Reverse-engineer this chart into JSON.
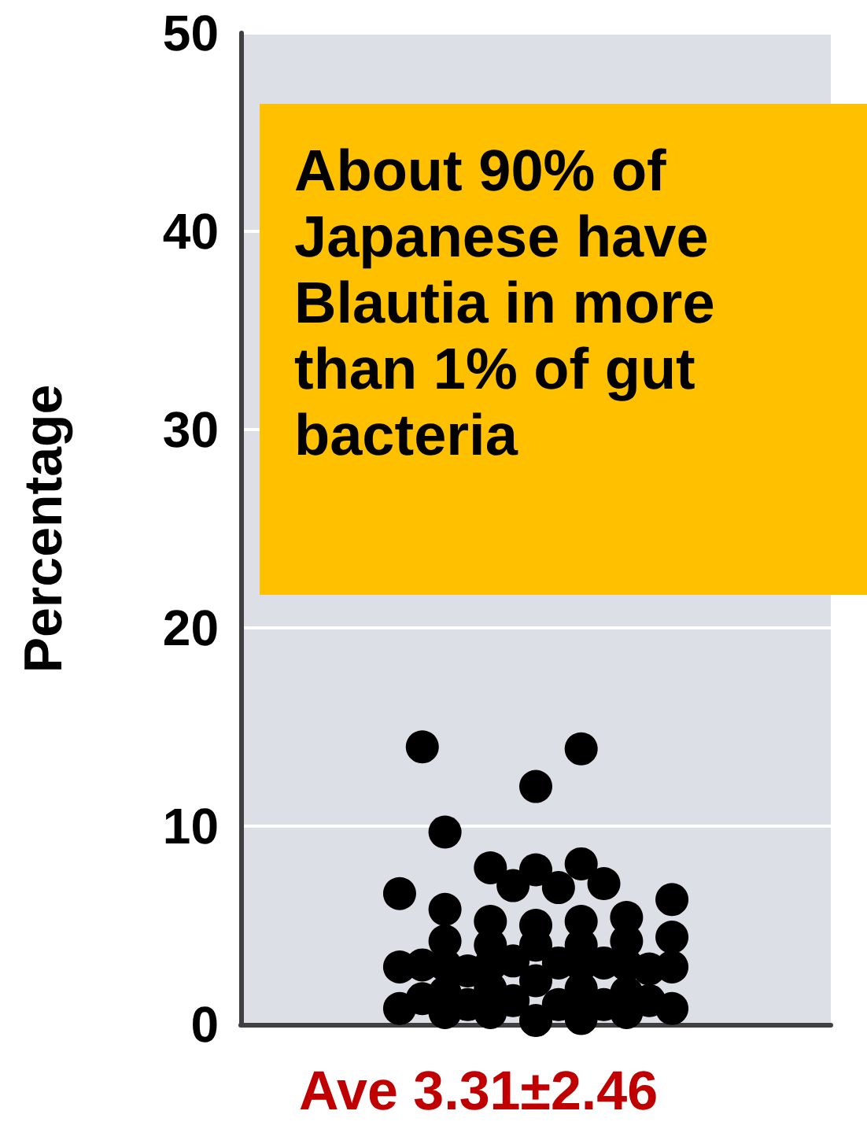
{
  "chart_data": {
    "type": "scatter",
    "ylabel": "Percentage",
    "annotations": [
      "About 90% of Japanese have Blautia in more than 1% of gut bacteria",
      "Ave 3.31±2.46"
    ],
    "categories": [
      null,
      null,
      null,
      null,
      null,
      null,
      null,
      null,
      null,
      null,
      null,
      null,
      null,
      null,
      null,
      null,
      null,
      null,
      null,
      null,
      null,
      null,
      null,
      null,
      null,
      null,
      null
    ],
    "ylim": [
      0,
      50
    ],
    "yticks": [
      0,
      10,
      20,
      30,
      40,
      50
    ],
    "grid": "y",
    "tick_labels": "y",
    "marker": "circle",
    "series": [
      {
        "color": "#000000",
        "values": [
          null,
          null,
          null,
          null,
          null,
          null,
          null,
          6.6,
          14.0,
          9.7,
          2.7,
          7.9,
          7.0,
          12.0,
          6.9,
          13.9,
          7.1,
          5.4,
          2.8,
          6.3,
          null,
          null,
          null,
          null,
          null,
          null,
          null
        ]
      },
      {
        "color": "#000000",
        "values": [
          null,
          null,
          null,
          null,
          null,
          null,
          null,
          2.9,
          3.0,
          5.8,
          1.0,
          5.2,
          3.2,
          7.8,
          3.1,
          8.1,
          3.1,
          4.2,
          1.2,
          4.4,
          null,
          null,
          null,
          null,
          null,
          null,
          null
        ]
      },
      {
        "color": "#000000",
        "values": [
          null,
          null,
          null,
          null,
          null,
          null,
          null,
          0.8,
          1.3,
          4.2,
          null,
          4.0,
          1.2,
          5.0,
          1.0,
          5.2,
          1.0,
          3.0,
          null,
          2.9,
          null,
          null,
          null,
          null,
          null,
          null,
          null
        ]
      },
      {
        "color": "#000000",
        "values": [
          null,
          null,
          null,
          null,
          null,
          null,
          null,
          null,
          null,
          3.0,
          null,
          3.0,
          null,
          4.0,
          null,
          4.0,
          null,
          1.6,
          null,
          0.8,
          null,
          null,
          null,
          null,
          null,
          null,
          null
        ]
      },
      {
        "color": "#000000",
        "values": [
          null,
          null,
          null,
          null,
          null,
          null,
          null,
          null,
          null,
          1.6,
          null,
          1.8,
          null,
          null,
          null,
          3.0,
          null,
          0.6,
          null,
          null,
          null,
          null,
          null,
          null,
          null,
          null,
          null
        ]
      },
      {
        "color": "#000000",
        "values": [
          null,
          null,
          null,
          null,
          null,
          null,
          null,
          null,
          null,
          0.6,
          null,
          0.6,
          null,
          2.2,
          null,
          1.8,
          null,
          null,
          null,
          null,
          null,
          null,
          null,
          null,
          null,
          null,
          null
        ]
      },
      {
        "color": "#000000",
        "values": [
          null,
          null,
          null,
          null,
          null,
          null,
          null,
          null,
          null,
          null,
          null,
          null,
          null,
          null,
          null,
          0.3,
          null,
          null,
          null,
          null,
          null,
          null,
          null,
          null,
          null,
          null,
          null
        ]
      },
      {
        "color": "#000000",
        "values": [
          null,
          null,
          null,
          null,
          null,
          null,
          null,
          null,
          null,
          null,
          null,
          null,
          null,
          0.2,
          null,
          null,
          null,
          null,
          null,
          null,
          null,
          null,
          null,
          null,
          null,
          null,
          null
        ]
      }
    ]
  }
}
